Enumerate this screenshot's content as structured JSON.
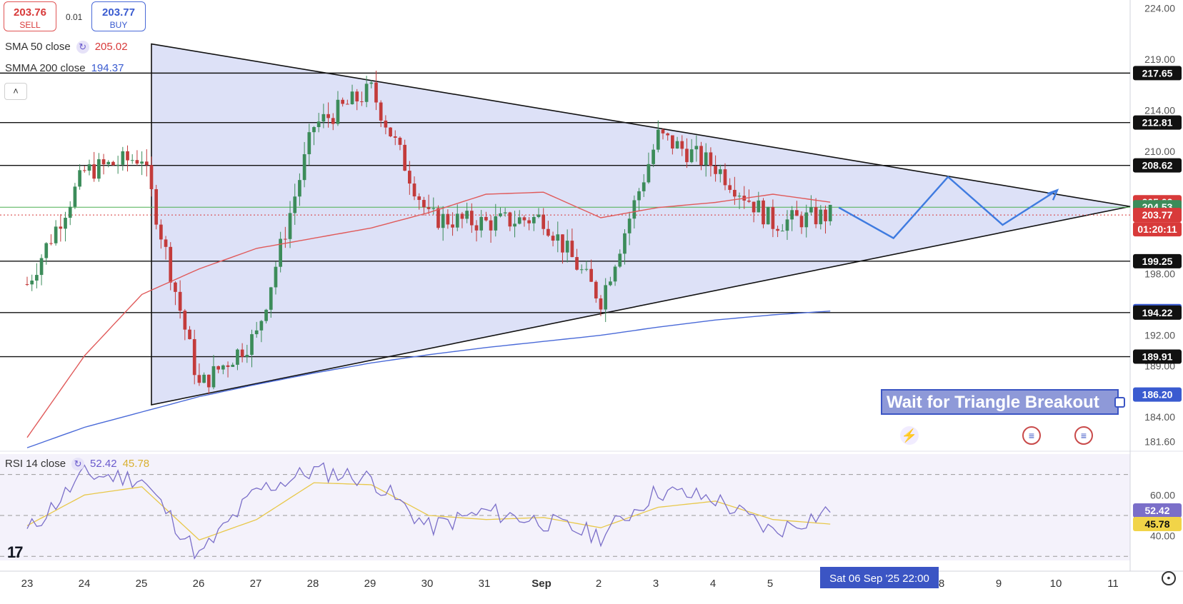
{
  "trade": {
    "sell_price": "203.76",
    "sell_label": "SELL",
    "buy_price": "203.77",
    "buy_label": "BUY",
    "spread": "0.01"
  },
  "legends": {
    "sma_label": "SMA 50 close",
    "sma_value": "205.02",
    "smma_label": "SMMA 200 close",
    "smma_value": "194.37",
    "rsi_label": "RSI 14 close",
    "rsi_value": "52.42",
    "rsi_ma_value": "45.78"
  },
  "collapse_icon": "chevron-up",
  "annotation": "Wait for Triangle Breakout",
  "event_icons": [
    "lightning-icon",
    "us-flag-icon",
    "us-flag-icon"
  ],
  "crosshair_label": "Sat 06 Sep '25  22:00",
  "colors": {
    "up": "#3c8c5a",
    "down": "#c33b3b",
    "sma": "#e05a5a",
    "smma": "#4a6ad8",
    "rsi": "#7b6fc9",
    "rsi_ma": "#e8c84a",
    "triangle_fill": "#d7dcf6",
    "projection": "#3f7be0"
  },
  "chart_data": [
    {
      "type": "candlestick",
      "title": "",
      "x_ticks": [
        "23",
        "24",
        "25",
        "26",
        "27",
        "28",
        "29",
        "30",
        "31",
        "Sep",
        "2",
        "3",
        "4",
        "5",
        "8",
        "9",
        "10",
        "11"
      ],
      "y_ticks": [
        "224.00",
        "219.00",
        "214.00",
        "210.00",
        "198.00",
        "192.00",
        "189.00",
        "184.00",
        "181.60"
      ],
      "ylim": [
        180.8,
        224.8
      ],
      "price_labels": [
        {
          "text": "217.65",
          "kind": "level"
        },
        {
          "text": "212.81",
          "kind": "level"
        },
        {
          "text": "208.62",
          "kind": "level"
        },
        {
          "text": "205.02",
          "kind": "sma"
        },
        {
          "text": "204.53",
          "kind": "line"
        },
        {
          "text": "203.77",
          "kind": "last"
        },
        {
          "text": "01:20:11",
          "kind": "countdown"
        },
        {
          "text": "199.25",
          "kind": "level"
        },
        {
          "text": "194.37",
          "kind": "smma"
        },
        {
          "text": "194.22",
          "kind": "level"
        },
        {
          "text": "189.91",
          "kind": "level"
        },
        {
          "text": "186.20",
          "kind": "annotation"
        }
      ],
      "horizontal_levels": [
        217.65,
        212.81,
        208.62,
        199.25,
        194.22,
        189.91
      ],
      "reference_line": 204.53,
      "last_price": 203.77,
      "triangle": {
        "upper_start": 220.5,
        "upper_end_x": "11",
        "lower_start": 185.2,
        "apex": 204.6
      },
      "candles": {
        "dates": [
          "23",
          "24",
          "25",
          "26",
          "27",
          "28",
          "29",
          "30",
          "31",
          "Sep",
          "2",
          "3",
          "4",
          "5",
          "6"
        ],
        "anchor_close": [
          197.0,
          208.0,
          209.5,
          187.0,
          192.0,
          212.5,
          216.0,
          203.5,
          203.0,
          203.5,
          195.5,
          211.5,
          208.5,
          203.0,
          203.77
        ],
        "candles_per_day": 12
      },
      "series": [
        {
          "name": "SMA 50 close",
          "values": [
            182.0,
            190.0,
            196.0,
            198.5,
            200.5,
            201.5,
            202.5,
            204.0,
            205.8,
            206.0,
            203.5,
            204.5,
            205.0,
            205.8,
            205.02
          ]
        },
        {
          "name": "SMMA 200 close",
          "values": [
            181.0,
            183.0,
            184.5,
            186.0,
            187.2,
            188.3,
            189.3,
            190.1,
            190.8,
            191.4,
            192.0,
            192.8,
            193.5,
            194.0,
            194.37
          ]
        }
      ],
      "projection": {
        "points": [
          204.5,
          201.5,
          207.5,
          202.8,
          206.2
        ]
      }
    },
    {
      "type": "line",
      "title": "RSI 14 close",
      "y_ticks": [
        "60.00",
        "40.00"
      ],
      "ylim": [
        28,
        80
      ],
      "bands": [
        70,
        50,
        30
      ],
      "value_labels": [
        {
          "text": "52.42",
          "kind": "rsi"
        },
        {
          "text": "45.78",
          "kind": "rsi_ma"
        }
      ],
      "series": [
        {
          "name": "RSI 14",
          "values": [
            42,
            70,
            68,
            30,
            62,
            72,
            68,
            44,
            52,
            47,
            40,
            62,
            58,
            42,
            52.42
          ]
        },
        {
          "name": "RSI MA",
          "values": [
            45,
            60,
            64,
            38,
            48,
            66,
            65,
            50,
            48,
            49,
            44,
            54,
            57,
            48,
            45.78
          ]
        }
      ]
    }
  ]
}
